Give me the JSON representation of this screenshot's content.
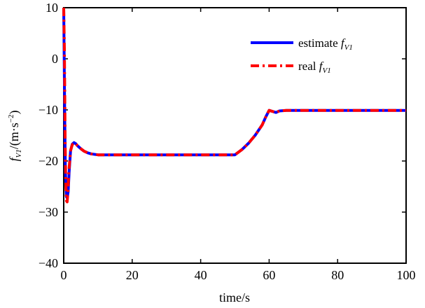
{
  "chart_data": {
    "type": "line",
    "xlabel": "time/s",
    "ylabel": {
      "main": "f",
      "sub": "V1",
      "unit_prefix": "/(m·s",
      "unit_exp": "−2",
      "unit_suffix": ")"
    },
    "xlim": [
      0,
      100
    ],
    "ylim": [
      -40,
      10
    ],
    "xticks": [
      0,
      20,
      40,
      60,
      80,
      100
    ],
    "xtick_labels": [
      "0",
      "20",
      "40",
      "60",
      "80",
      "100"
    ],
    "yticks": [
      -40,
      -30,
      -20,
      -10,
      0,
      10
    ],
    "ytick_labels": [
      "−40",
      "−30",
      "−20",
      "−10",
      "0",
      "10"
    ],
    "grid": false,
    "legend_position": "top-right",
    "series": [
      {
        "name": "estimate",
        "name_math": "f",
        "name_sub": "V1",
        "color": "#0000ff",
        "style": "solid",
        "x": [
          0,
          0.3,
          0.5,
          0.8,
          1,
          1.3,
          1.6,
          2,
          2.5,
          3,
          3.5,
          4,
          5,
          6,
          7,
          8,
          10,
          12,
          15,
          20,
          30,
          40,
          50,
          52,
          54,
          56,
          58,
          59,
          60,
          61,
          62,
          63,
          65,
          70,
          80,
          90,
          100
        ],
        "y": [
          10,
          -12,
          -22,
          -27,
          -27.2,
          -26,
          -22,
          -18,
          -16.7,
          -16.4,
          -16.6,
          -17,
          -17.6,
          -18.1,
          -18.4,
          -18.6,
          -18.8,
          -18.8,
          -18.8,
          -18.8,
          -18.8,
          -18.8,
          -18.8,
          -17.8,
          -16.5,
          -14.9,
          -12.9,
          -11.4,
          -10.1,
          -10.3,
          -10.5,
          -10.2,
          -10.1,
          -10.1,
          -10.1,
          -10.1,
          -10.1
        ]
      },
      {
        "name": "real",
        "name_math": "f",
        "name_sub": "V1",
        "color": "#ff0000",
        "style": "dashdot",
        "x": [
          0,
          0.2,
          0.4,
          0.6,
          0.8,
          1,
          1.2,
          1.5,
          2,
          2.5,
          3,
          3.5,
          4,
          5,
          6,
          7,
          8,
          10,
          12,
          15,
          20,
          30,
          40,
          50,
          52,
          54,
          56,
          58,
          59,
          60,
          61,
          62,
          63,
          65,
          70,
          80,
          90,
          100
        ],
        "y": [
          10,
          2,
          -15,
          -24,
          -27.8,
          -28,
          -26.5,
          -22,
          -18,
          -16.8,
          -16.5,
          -16.6,
          -17,
          -17.6,
          -18.1,
          -18.4,
          -18.6,
          -18.8,
          -18.8,
          -18.8,
          -18.8,
          -18.8,
          -18.8,
          -18.8,
          -17.8,
          -16.5,
          -14.9,
          -12.9,
          -11.4,
          -10.1,
          -10.3,
          -10.5,
          -10.2,
          -10.1,
          -10.1,
          -10.1,
          -10.1,
          -10.1
        ]
      }
    ]
  }
}
